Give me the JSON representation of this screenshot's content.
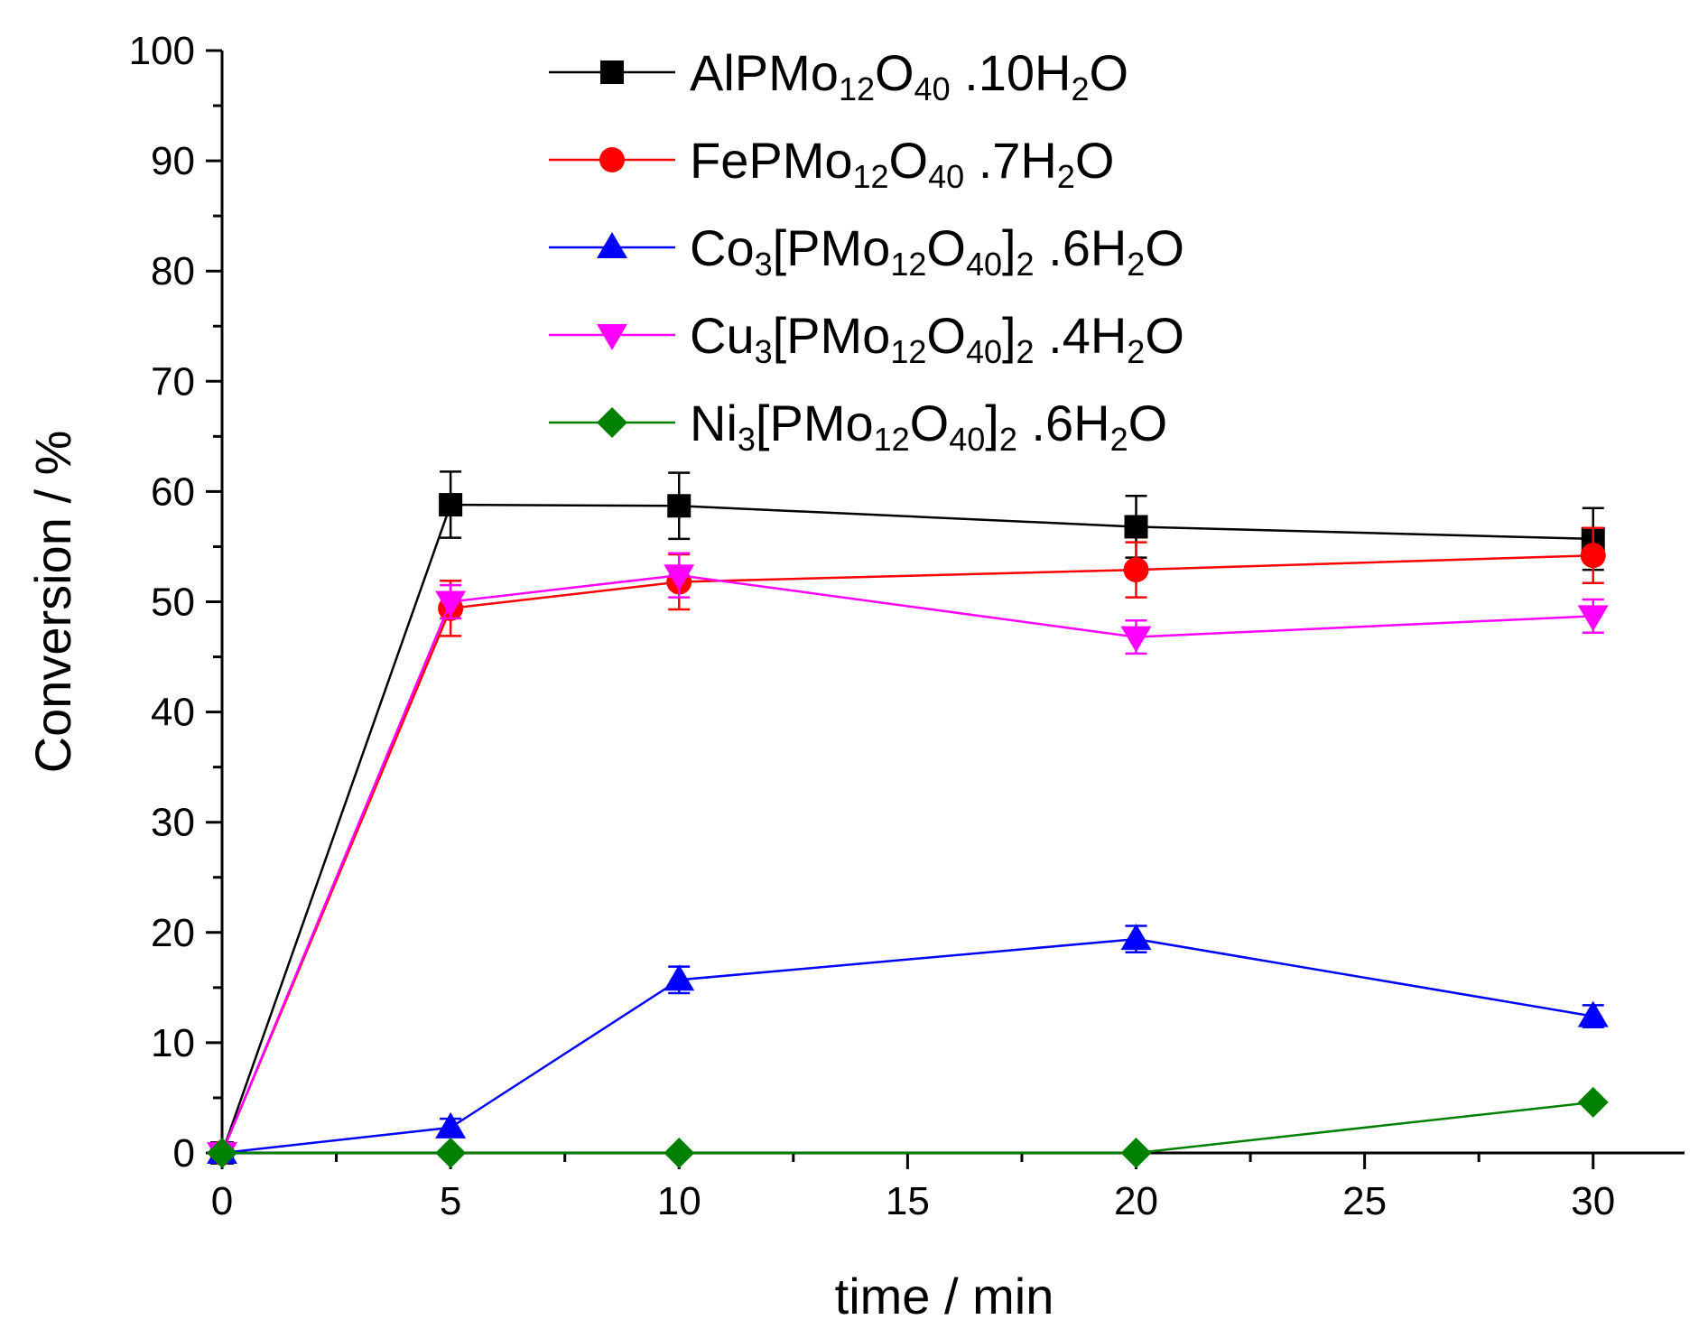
{
  "chart_data": {
    "type": "line",
    "title": "",
    "xlabel": "time / min",
    "ylabel": "Conversion / %",
    "xlim": [
      0,
      32
    ],
    "ylim": [
      0,
      100
    ],
    "x_ticks": [
      0,
      5,
      10,
      15,
      20,
      25,
      30
    ],
    "y_ticks": [
      0,
      10,
      20,
      30,
      40,
      50,
      60,
      70,
      80,
      90,
      100
    ],
    "x": [
      0,
      5,
      10,
      20,
      30
    ],
    "legend_position": "top-center",
    "series": [
      {
        "name": "AlPMo12O40 .10H2O",
        "label_parts": [
          [
            "AlPMo",
            ""
          ],
          [
            "12",
            "sub"
          ],
          [
            "O",
            ""
          ],
          [
            "40",
            "sub"
          ],
          [
            " .10H",
            ""
          ],
          [
            "2",
            "sub"
          ],
          [
            "O",
            ""
          ]
        ],
        "color": "#000000",
        "marker": "square",
        "values": [
          0,
          58.8,
          58.7,
          56.8,
          55.7
        ],
        "errors": [
          0,
          3.0,
          3.0,
          2.8,
          2.8
        ]
      },
      {
        "name": "FePMo12O40 .7H2O",
        "label_parts": [
          [
            "FePMo",
            ""
          ],
          [
            "12",
            "sub"
          ],
          [
            "O",
            ""
          ],
          [
            "40",
            "sub"
          ],
          [
            " .7H",
            ""
          ],
          [
            "2",
            "sub"
          ],
          [
            "O",
            ""
          ]
        ],
        "color": "#ff0000",
        "marker": "circle",
        "values": [
          0,
          49.4,
          51.8,
          52.9,
          54.2
        ],
        "errors": [
          0,
          2.5,
          2.5,
          2.5,
          2.5
        ]
      },
      {
        "name": "Co3[PMo12O40]2 .6H2O",
        "label_parts": [
          [
            "Co",
            ""
          ],
          [
            "3",
            "sub"
          ],
          [
            "[PMo",
            ""
          ],
          [
            "12",
            "sub"
          ],
          [
            "O",
            ""
          ],
          [
            "40",
            "sub"
          ],
          [
            "]",
            ""
          ],
          [
            "2",
            "sub"
          ],
          [
            " .6H",
            ""
          ],
          [
            "2",
            "sub"
          ],
          [
            "O",
            ""
          ]
        ],
        "color": "#0000ff",
        "marker": "triangle-up",
        "values": [
          0,
          2.3,
          15.7,
          19.4,
          12.4
        ],
        "errors": [
          0,
          0.8,
          1.2,
          1.2,
          1.0
        ]
      },
      {
        "name": "Cu3[PMo12O40]2 .4H2O",
        "label_parts": [
          [
            "Cu",
            ""
          ],
          [
            "3",
            "sub"
          ],
          [
            "[PMo",
            ""
          ],
          [
            "12",
            "sub"
          ],
          [
            "O",
            ""
          ],
          [
            "40",
            "sub"
          ],
          [
            "]",
            ""
          ],
          [
            "2",
            "sub"
          ],
          [
            " .4H",
            ""
          ],
          [
            "2",
            "sub"
          ],
          [
            "O",
            ""
          ]
        ],
        "color": "#ff00ff",
        "marker": "triangle-down",
        "values": [
          0,
          50.0,
          52.4,
          46.8,
          48.7
        ],
        "errors": [
          0,
          1.5,
          2.0,
          1.5,
          1.5
        ]
      },
      {
        "name": "Ni3[PMo12O40]2 .6H2O",
        "label_parts": [
          [
            "Ni",
            ""
          ],
          [
            "3",
            "sub"
          ],
          [
            "[PMo",
            ""
          ],
          [
            "12",
            "sub"
          ],
          [
            "O",
            ""
          ],
          [
            "40",
            "sub"
          ],
          [
            "]",
            ""
          ],
          [
            "2",
            "sub"
          ],
          [
            " .6H",
            ""
          ],
          [
            "2",
            "sub"
          ],
          [
            "O",
            ""
          ]
        ],
        "color": "#008000",
        "marker": "diamond",
        "values": [
          0,
          0,
          0,
          0,
          4.6
        ],
        "errors": [
          0,
          0,
          0,
          0,
          0
        ]
      }
    ]
  }
}
